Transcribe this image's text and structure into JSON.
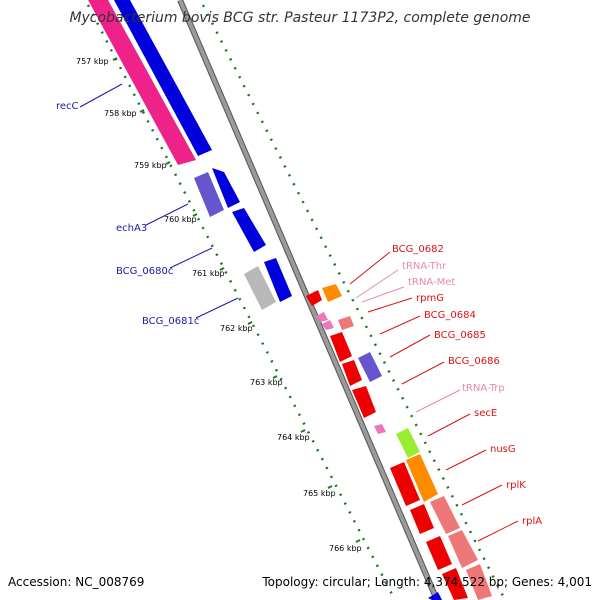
{
  "title": "Mycobacterium bovis BCG str. Pasteur 1173P2, complete genome",
  "footer": {
    "accession": "Accession: NC_008769",
    "summary": "Topology: circular; Length: 4,374,522 bp; Genes: 4,001"
  },
  "colors": {
    "backbone": "#8c8c8c",
    "tick": "#1a7a1a",
    "label_blue": "#1a1aaa",
    "label_red": "#dd1111",
    "label_pink": "#e68aaa",
    "gene_pink": "#ee2288",
    "gene_blue": "#0000dd",
    "gene_purple": "#6655cc",
    "gene_gray": "#b8b8b8",
    "gene_red": "#ee0000",
    "gene_orange": "#ff8c00",
    "gene_salmon": "#ee7777",
    "gene_green": "#99ee33"
  },
  "ticks": [
    "757 kbp",
    "758 kbp",
    "759 kbp",
    "760 kbp",
    "761 kbp",
    "762 kbp",
    "763 kbp",
    "764 kbp",
    "765 kbp",
    "766 kbp"
  ],
  "left_labels": [
    "recC",
    "echA3",
    "BCG_0680c",
    "BCG_0681c"
  ],
  "right_labels": [
    {
      "text": "BCG_0682",
      "kind": "red"
    },
    {
      "text": "tRNA-Thr",
      "kind": "pink"
    },
    {
      "text": "tRNA-Met",
      "kind": "pink"
    },
    {
      "text": "rpmG",
      "kind": "red"
    },
    {
      "text": "BCG_0684",
      "kind": "red"
    },
    {
      "text": "BCG_0685",
      "kind": "red"
    },
    {
      "text": "BCG_0686",
      "kind": "red"
    },
    {
      "text": "tRNA-Trp",
      "kind": "pink"
    },
    {
      "text": "secE",
      "kind": "red"
    },
    {
      "text": "nusG",
      "kind": "red"
    },
    {
      "text": "rplK",
      "kind": "red"
    },
    {
      "text": "rplA",
      "kind": "red"
    }
  ],
  "feature_kinds": [
    "recC",
    "recC-neighbor",
    "echA3",
    "blue-a",
    "blue-b",
    "BCG_0680c",
    "BCG_0681c",
    "BCG_0681c-neighbor",
    "BCG_0682",
    "orange-a",
    "tRNA-Thr",
    "tRNA-Met",
    "rpmG",
    "BCG_0684",
    "BCG_0685",
    "purple-a",
    "BCG_0686",
    "tRNA-Trp",
    "secE",
    "nusG",
    "rplK",
    "rplA"
  ]
}
